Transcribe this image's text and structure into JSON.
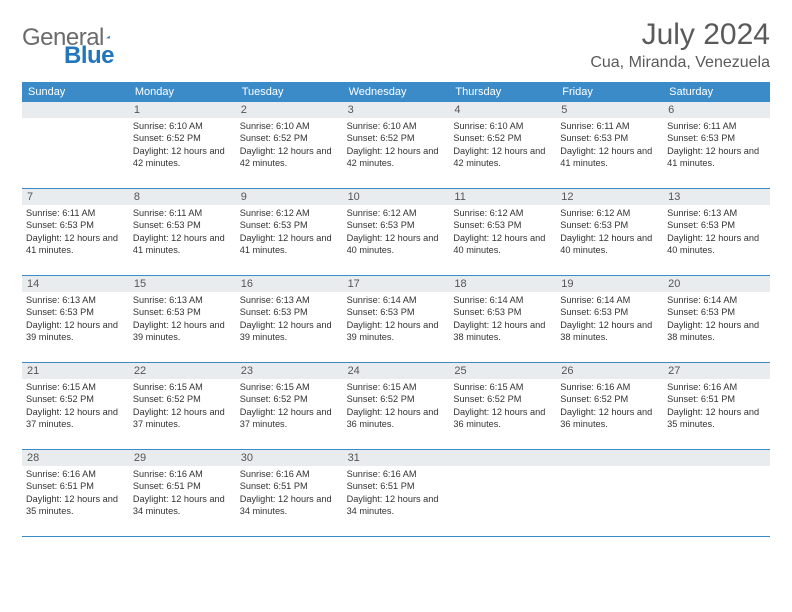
{
  "brand": {
    "name_gray": "General",
    "name_blue": "Blue"
  },
  "title": "July 2024",
  "location": "Cua, Miranda, Venezuela",
  "day_headers": [
    "Sunday",
    "Monday",
    "Tuesday",
    "Wednesday",
    "Thursday",
    "Friday",
    "Saturday"
  ],
  "colors": {
    "header_bg": "#3b8bc9",
    "header_text": "#ffffff",
    "daynum_bg": "#e9ecef",
    "row_border": "#3b8bc9",
    "text": "#333333",
    "logo_gray": "#6b6b6b",
    "logo_blue": "#2176bd"
  },
  "weeks": [
    [
      {
        "n": "",
        "lines": []
      },
      {
        "n": "1",
        "lines": [
          "Sunrise: 6:10 AM",
          "Sunset: 6:52 PM",
          "Daylight: 12 hours and 42 minutes."
        ]
      },
      {
        "n": "2",
        "lines": [
          "Sunrise: 6:10 AM",
          "Sunset: 6:52 PM",
          "Daylight: 12 hours and 42 minutes."
        ]
      },
      {
        "n": "3",
        "lines": [
          "Sunrise: 6:10 AM",
          "Sunset: 6:52 PM",
          "Daylight: 12 hours and 42 minutes."
        ]
      },
      {
        "n": "4",
        "lines": [
          "Sunrise: 6:10 AM",
          "Sunset: 6:52 PM",
          "Daylight: 12 hours and 42 minutes."
        ]
      },
      {
        "n": "5",
        "lines": [
          "Sunrise: 6:11 AM",
          "Sunset: 6:53 PM",
          "Daylight: 12 hours and 41 minutes."
        ]
      },
      {
        "n": "6",
        "lines": [
          "Sunrise: 6:11 AM",
          "Sunset: 6:53 PM",
          "Daylight: 12 hours and 41 minutes."
        ]
      }
    ],
    [
      {
        "n": "7",
        "lines": [
          "Sunrise: 6:11 AM",
          "Sunset: 6:53 PM",
          "Daylight: 12 hours and 41 minutes."
        ]
      },
      {
        "n": "8",
        "lines": [
          "Sunrise: 6:11 AM",
          "Sunset: 6:53 PM",
          "Daylight: 12 hours and 41 minutes."
        ]
      },
      {
        "n": "9",
        "lines": [
          "Sunrise: 6:12 AM",
          "Sunset: 6:53 PM",
          "Daylight: 12 hours and 41 minutes."
        ]
      },
      {
        "n": "10",
        "lines": [
          "Sunrise: 6:12 AM",
          "Sunset: 6:53 PM",
          "Daylight: 12 hours and 40 minutes."
        ]
      },
      {
        "n": "11",
        "lines": [
          "Sunrise: 6:12 AM",
          "Sunset: 6:53 PM",
          "Daylight: 12 hours and 40 minutes."
        ]
      },
      {
        "n": "12",
        "lines": [
          "Sunrise: 6:12 AM",
          "Sunset: 6:53 PM",
          "Daylight: 12 hours and 40 minutes."
        ]
      },
      {
        "n": "13",
        "lines": [
          "Sunrise: 6:13 AM",
          "Sunset: 6:53 PM",
          "Daylight: 12 hours and 40 minutes."
        ]
      }
    ],
    [
      {
        "n": "14",
        "lines": [
          "Sunrise: 6:13 AM",
          "Sunset: 6:53 PM",
          "Daylight: 12 hours and 39 minutes."
        ]
      },
      {
        "n": "15",
        "lines": [
          "Sunrise: 6:13 AM",
          "Sunset: 6:53 PM",
          "Daylight: 12 hours and 39 minutes."
        ]
      },
      {
        "n": "16",
        "lines": [
          "Sunrise: 6:13 AM",
          "Sunset: 6:53 PM",
          "Daylight: 12 hours and 39 minutes."
        ]
      },
      {
        "n": "17",
        "lines": [
          "Sunrise: 6:14 AM",
          "Sunset: 6:53 PM",
          "Daylight: 12 hours and 39 minutes."
        ]
      },
      {
        "n": "18",
        "lines": [
          "Sunrise: 6:14 AM",
          "Sunset: 6:53 PM",
          "Daylight: 12 hours and 38 minutes."
        ]
      },
      {
        "n": "19",
        "lines": [
          "Sunrise: 6:14 AM",
          "Sunset: 6:53 PM",
          "Daylight: 12 hours and 38 minutes."
        ]
      },
      {
        "n": "20",
        "lines": [
          "Sunrise: 6:14 AM",
          "Sunset: 6:53 PM",
          "Daylight: 12 hours and 38 minutes."
        ]
      }
    ],
    [
      {
        "n": "21",
        "lines": [
          "Sunrise: 6:15 AM",
          "Sunset: 6:52 PM",
          "Daylight: 12 hours and 37 minutes."
        ]
      },
      {
        "n": "22",
        "lines": [
          "Sunrise: 6:15 AM",
          "Sunset: 6:52 PM",
          "Daylight: 12 hours and 37 minutes."
        ]
      },
      {
        "n": "23",
        "lines": [
          "Sunrise: 6:15 AM",
          "Sunset: 6:52 PM",
          "Daylight: 12 hours and 37 minutes."
        ]
      },
      {
        "n": "24",
        "lines": [
          "Sunrise: 6:15 AM",
          "Sunset: 6:52 PM",
          "Daylight: 12 hours and 36 minutes."
        ]
      },
      {
        "n": "25",
        "lines": [
          "Sunrise: 6:15 AM",
          "Sunset: 6:52 PM",
          "Daylight: 12 hours and 36 minutes."
        ]
      },
      {
        "n": "26",
        "lines": [
          "Sunrise: 6:16 AM",
          "Sunset: 6:52 PM",
          "Daylight: 12 hours and 36 minutes."
        ]
      },
      {
        "n": "27",
        "lines": [
          "Sunrise: 6:16 AM",
          "Sunset: 6:51 PM",
          "Daylight: 12 hours and 35 minutes."
        ]
      }
    ],
    [
      {
        "n": "28",
        "lines": [
          "Sunrise: 6:16 AM",
          "Sunset: 6:51 PM",
          "Daylight: 12 hours and 35 minutes."
        ]
      },
      {
        "n": "29",
        "lines": [
          "Sunrise: 6:16 AM",
          "Sunset: 6:51 PM",
          "Daylight: 12 hours and 34 minutes."
        ]
      },
      {
        "n": "30",
        "lines": [
          "Sunrise: 6:16 AM",
          "Sunset: 6:51 PM",
          "Daylight: 12 hours and 34 minutes."
        ]
      },
      {
        "n": "31",
        "lines": [
          "Sunrise: 6:16 AM",
          "Sunset: 6:51 PM",
          "Daylight: 12 hours and 34 minutes."
        ]
      },
      {
        "n": "",
        "lines": []
      },
      {
        "n": "",
        "lines": []
      },
      {
        "n": "",
        "lines": []
      }
    ]
  ]
}
